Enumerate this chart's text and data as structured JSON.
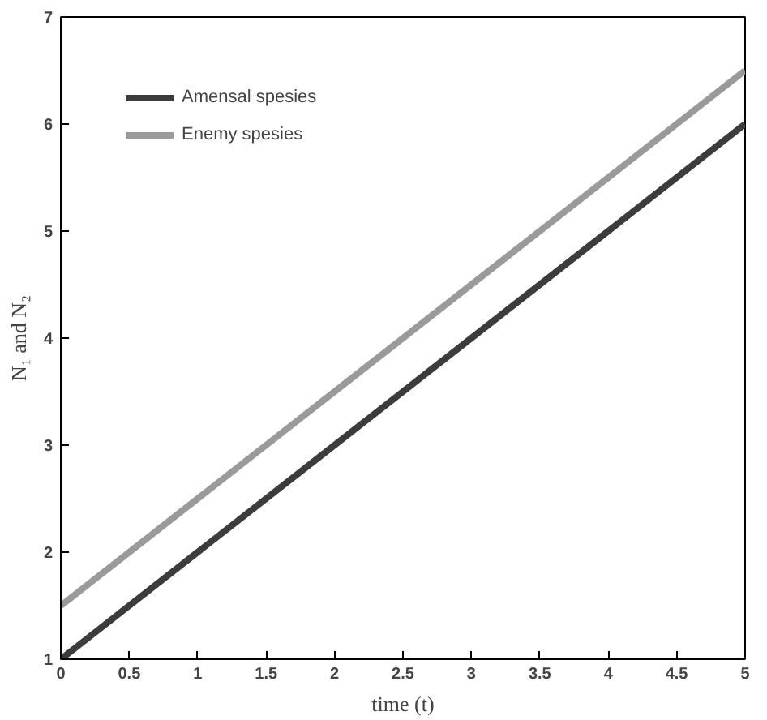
{
  "chart_data": {
    "type": "line",
    "xlabel": "time (t)",
    "ylabel": "N₁ and N₂",
    "x": [
      0,
      1,
      2,
      3,
      4,
      5
    ],
    "series": [
      {
        "name": "Amensal spesies",
        "color": "#3c3c3c",
        "values": [
          1,
          2,
          3,
          4,
          5,
          6
        ]
      },
      {
        "name": "Enemy spesies",
        "color": "#9a9a9a",
        "values": [
          1.5,
          2.5,
          3.5,
          4.5,
          5.5,
          6.5
        ]
      }
    ],
    "xlim": [
      0,
      5
    ],
    "ylim": [
      1,
      7
    ],
    "xticks": [
      0,
      0.5,
      1,
      1.5,
      2,
      2.5,
      3,
      3.5,
      4,
      4.5,
      5
    ],
    "yticks": [
      1,
      2,
      3,
      4,
      5,
      6,
      7
    ],
    "grid": false,
    "legend": "top left",
    "marker": "none",
    "line_style": "solid"
  }
}
